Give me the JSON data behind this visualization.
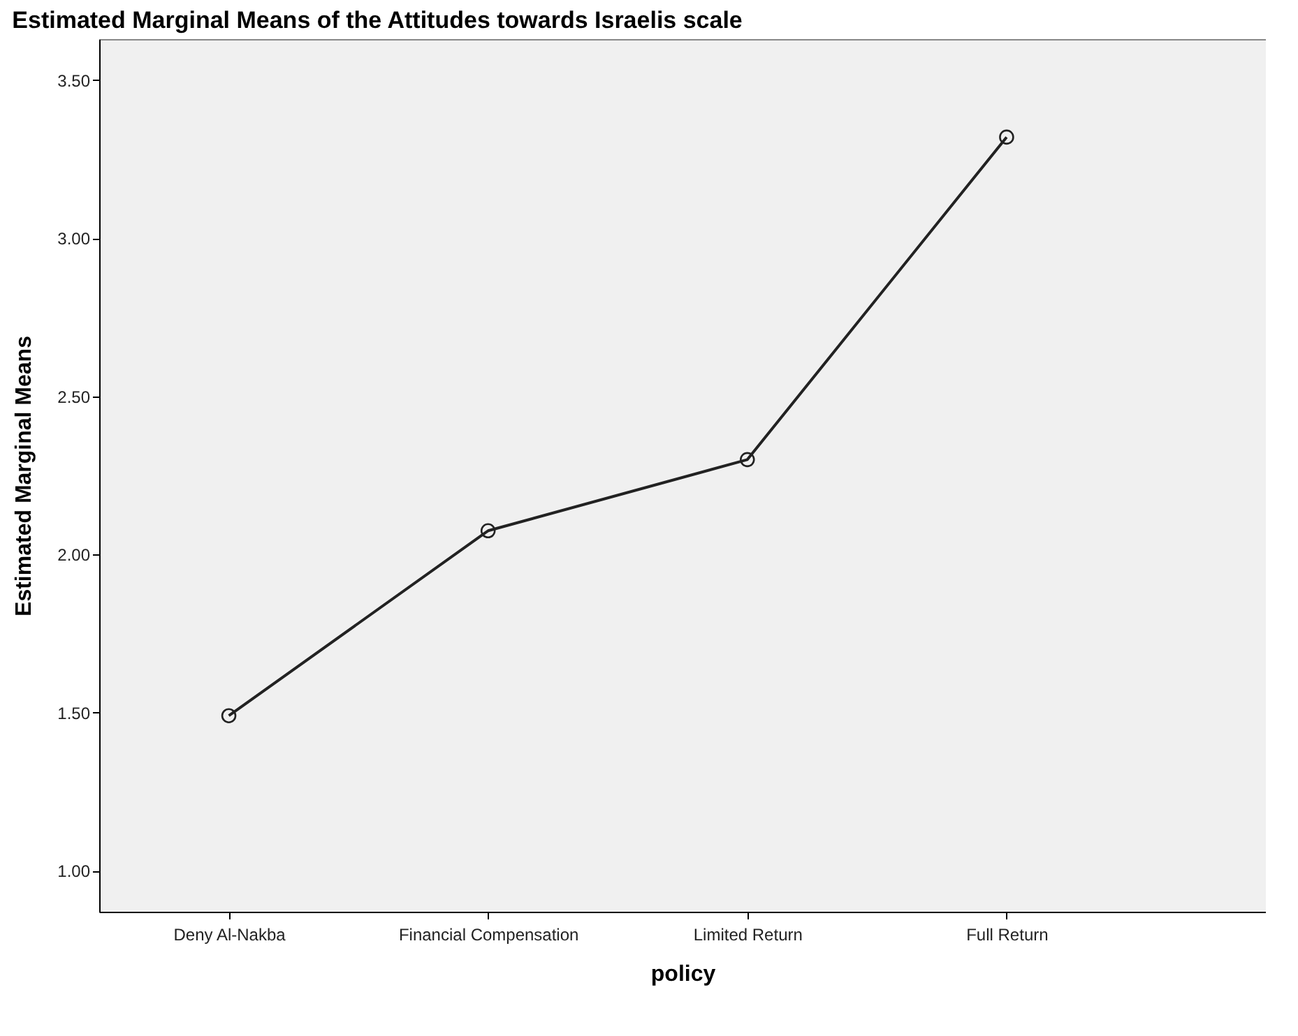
{
  "chart_data": {
    "type": "line",
    "title": "Estimated Marginal Means of the Attitudes towards Israelis scale",
    "xlabel": "policy",
    "ylabel": "Estimated Marginal Means",
    "categories": [
      "Deny Al-Nakba",
      "Financial Compensation",
      "Limited Return",
      "Full Return"
    ],
    "series": [
      {
        "color": "#222222",
        "values": [
          1.49,
          2.075,
          2.3,
          3.32
        ]
      }
    ],
    "ylim": [
      0.87,
      3.63
    ],
    "yticks": [
      {
        "value": 1.0,
        "label": "1.00"
      },
      {
        "value": 1.5,
        "label": "1.50"
      },
      {
        "value": 2.0,
        "label": "2.00"
      },
      {
        "value": 2.5,
        "label": "2.50"
      },
      {
        "value": 3.0,
        "label": "3.00"
      },
      {
        "value": 3.5,
        "label": "3.50"
      }
    ],
    "grid": false,
    "marker": "circle",
    "line_style": "solid"
  }
}
